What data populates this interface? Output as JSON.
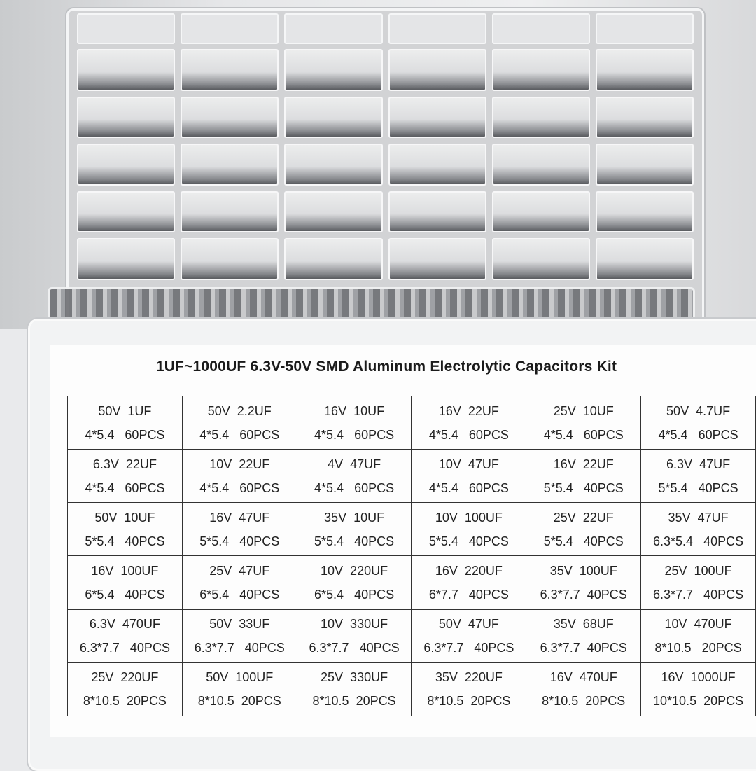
{
  "title": "1UF~1000UF 6.3V-50V SMD Aluminum Electrolytic Capacitors Kit",
  "rows": [
    [
      [
        "50V  1UF",
        "4*5.4   60PCS"
      ],
      [
        "50V  2.2UF",
        "4*5.4   60PCS"
      ],
      [
        "16V  10UF",
        "4*5.4   60PCS"
      ],
      [
        "16V  22UF",
        "4*5.4   60PCS"
      ],
      [
        "25V  10UF",
        "4*5.4   60PCS"
      ],
      [
        "50V  4.7UF",
        "4*5.4   60PCS"
      ]
    ],
    [
      [
        "6.3V  22UF",
        "4*5.4   60PCS"
      ],
      [
        "10V  22UF",
        "4*5.4   60PCS"
      ],
      [
        "4V  47UF",
        "4*5.4   60PCS"
      ],
      [
        "10V  47UF",
        "4*5.4   60PCS"
      ],
      [
        "16V  22UF",
        "5*5.4   40PCS"
      ],
      [
        "6.3V  47UF",
        "5*5.4   40PCS"
      ]
    ],
    [
      [
        "50V  10UF",
        "5*5.4   40PCS"
      ],
      [
        "16V  47UF",
        "5*5.4   40PCS"
      ],
      [
        "35V  10UF",
        "5*5.4   40PCS"
      ],
      [
        "10V  100UF",
        "5*5.4   40PCS"
      ],
      [
        "25V  22UF",
        "5*5.4   40PCS"
      ],
      [
        "35V  47UF",
        "6.3*5.4   40PCS"
      ]
    ],
    [
      [
        "16V  100UF",
        "6*5.4   40PCS"
      ],
      [
        "25V  47UF",
        "6*5.4   40PCS"
      ],
      [
        "10V  220UF",
        "6*5.4   40PCS"
      ],
      [
        "16V  220UF",
        "6*7.7   40PCS"
      ],
      [
        "35V  100UF",
        "6.3*7.7  40PCS"
      ],
      [
        "25V  100UF",
        "6.3*7.7   40PCS"
      ]
    ],
    [
      [
        "6.3V  470UF",
        "6.3*7.7   40PCS"
      ],
      [
        "50V  33UF",
        "6.3*7.7   40PCS"
      ],
      [
        "10V  330UF",
        "6.3*7.7   40PCS"
      ],
      [
        "50V  47UF",
        "6.3*7.7   40PCS"
      ],
      [
        "35V  68UF",
        "6.3*7.7  40PCS"
      ],
      [
        "10V  470UF",
        "8*10.5   20PCS"
      ]
    ],
    [
      [
        "25V  220UF",
        "8*10.5  20PCS"
      ],
      [
        "50V  100UF",
        "8*10.5  20PCS"
      ],
      [
        "25V  330UF",
        "8*10.5  20PCS"
      ],
      [
        "35V  220UF",
        "8*10.5  20PCS"
      ],
      [
        "16V  470UF",
        "8*10.5  20PCS"
      ],
      [
        "16V  1000UF",
        "10*10.5  20PCS"
      ]
    ]
  ]
}
